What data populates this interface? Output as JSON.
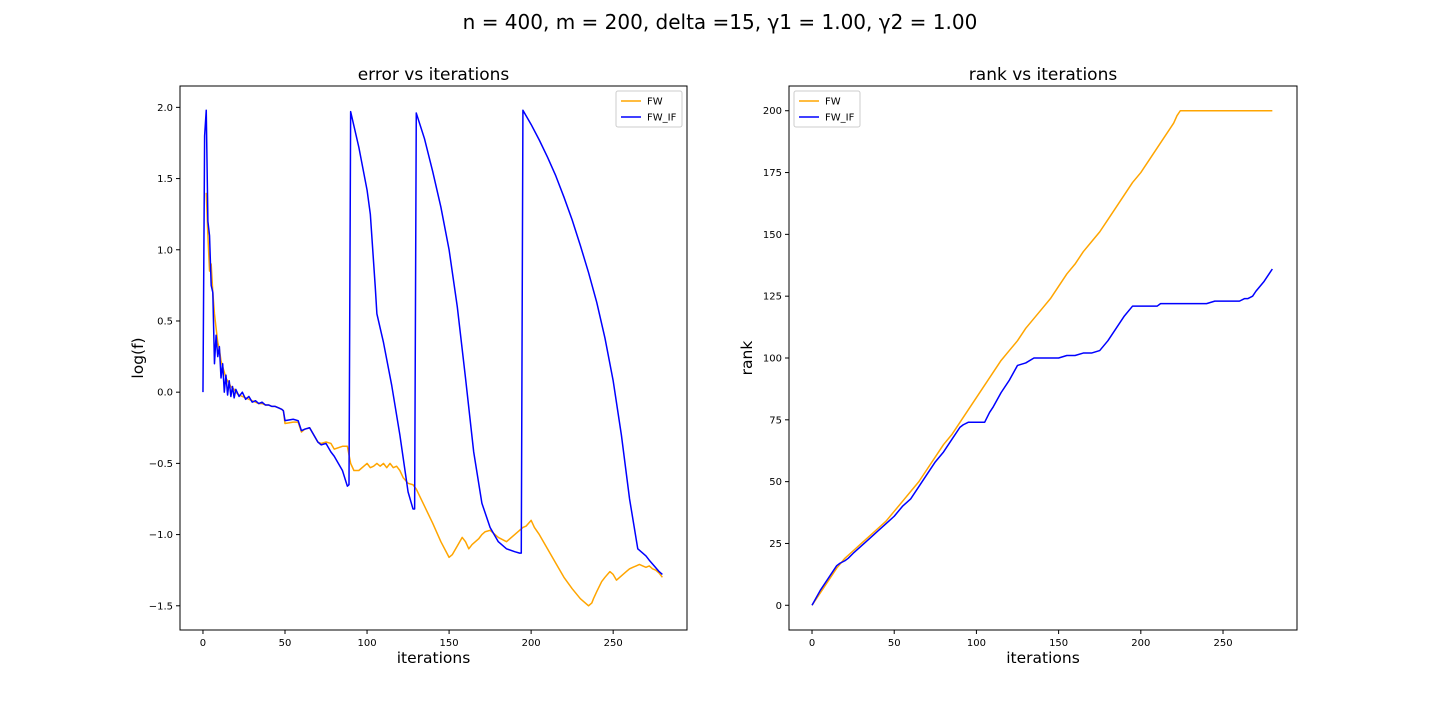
{
  "figure": {
    "suptitle": "n = 400, m = 200, delta =15, γ1 = 1.00, γ2 = 1.00"
  },
  "colors": {
    "FW": "#ffa500",
    "FW_IF": "#0000ff",
    "axes": "#000000",
    "legend_border": "#cccccc"
  },
  "chart_data": [
    {
      "type": "line",
      "title": "error vs iterations",
      "xlabel": "iterations",
      "ylabel": "log(f)",
      "xlim": [
        -14,
        295
      ],
      "ylim": [
        -1.67,
        2.15
      ],
      "xticks": [
        0,
        50,
        100,
        150,
        200,
        250
      ],
      "xtick_labels": [
        "0",
        "50",
        "100",
        "150",
        "200",
        "250"
      ],
      "yticks": [
        -1.5,
        -1.0,
        -0.5,
        0.0,
        0.5,
        1.0,
        1.5,
        2.0
      ],
      "ytick_labels": [
        "−1.5",
        "−1.0",
        "−0.5",
        "0.0",
        "0.5",
        "1.0",
        "1.5",
        "2.0"
      ],
      "grid": false,
      "legend": "top-right",
      "series": [
        {
          "name": "FW",
          "color_key": "FW",
          "x": [
            2,
            3,
            4,
            5,
            6,
            7,
            8,
            9,
            10,
            11,
            12,
            13,
            14,
            15,
            16,
            17,
            18,
            19,
            20,
            22,
            24,
            26,
            28,
            30,
            32,
            34,
            36,
            38,
            40,
            42,
            44,
            46,
            48,
            49,
            50,
            55,
            58,
            60,
            62,
            65,
            70,
            72,
            75,
            78,
            80,
            85,
            88,
            90,
            92,
            95,
            100,
            102,
            104,
            106,
            108,
            110,
            112,
            114,
            116,
            118,
            120,
            122,
            125,
            128,
            130,
            135,
            140,
            145,
            150,
            152,
            155,
            158,
            160,
            162,
            164,
            166,
            168,
            170,
            172,
            175,
            178,
            180,
            185,
            190,
            195,
            197,
            200,
            202,
            205,
            210,
            215,
            220,
            225,
            230,
            235,
            237,
            238,
            240,
            243,
            245,
            248,
            250,
            252,
            254,
            256,
            258,
            260,
            262,
            264,
            266,
            268,
            270,
            272,
            274,
            276,
            278,
            280
          ],
          "y": [
            1.4,
            1.1,
            0.85,
            0.9,
            0.7,
            0.55,
            0.45,
            0.35,
            0.3,
            0.22,
            0.18,
            0.14,
            0.1,
            0.08,
            0.06,
            0.04,
            0.03,
            0.02,
            0.0,
            -0.02,
            -0.03,
            -0.04,
            -0.05,
            -0.06,
            -0.07,
            -0.08,
            -0.08,
            -0.09,
            -0.09,
            -0.1,
            -0.1,
            -0.11,
            -0.12,
            -0.13,
            -0.22,
            -0.21,
            -0.21,
            -0.28,
            -0.26,
            -0.25,
            -0.35,
            -0.36,
            -0.35,
            -0.36,
            -0.4,
            -0.38,
            -0.38,
            -0.5,
            -0.55,
            -0.55,
            -0.5,
            -0.53,
            -0.52,
            -0.5,
            -0.52,
            -0.5,
            -0.53,
            -0.5,
            -0.53,
            -0.52,
            -0.55,
            -0.6,
            -0.64,
            -0.65,
            -0.68,
            -0.8,
            -0.92,
            -1.05,
            -1.16,
            -1.14,
            -1.08,
            -1.02,
            -1.05,
            -1.1,
            -1.07,
            -1.05,
            -1.03,
            -1.0,
            -0.98,
            -0.97,
            -1.0,
            -1.02,
            -1.05,
            -1.0,
            -0.95,
            -0.94,
            -0.9,
            -0.95,
            -1.0,
            -1.1,
            -1.2,
            -1.3,
            -1.38,
            -1.45,
            -1.5,
            -1.48,
            -1.45,
            -1.4,
            -1.33,
            -1.3,
            -1.26,
            -1.28,
            -1.32,
            -1.3,
            -1.28,
            -1.26,
            -1.24,
            -1.23,
            -1.22,
            -1.21,
            -1.22,
            -1.23,
            -1.22,
            -1.24,
            -1.25,
            -1.27,
            -1.3
          ]
        },
        {
          "name": "FW_IF",
          "color_key": "FW_IF",
          "x": [
            0,
            1,
            2,
            3,
            4,
            5,
            6,
            7,
            8,
            9,
            10,
            11,
            12,
            13,
            14,
            15,
            16,
            17,
            18,
            19,
            20,
            22,
            24,
            26,
            28,
            30,
            32,
            34,
            36,
            38,
            40,
            42,
            44,
            46,
            48,
            49,
            50,
            55,
            58,
            60,
            62,
            65,
            70,
            72,
            75,
            78,
            80,
            85,
            88,
            89,
            90,
            95,
            100,
            102,
            105,
            106,
            110,
            115,
            120,
            125,
            128,
            129,
            130,
            135,
            140,
            145,
            150,
            155,
            160,
            165,
            170,
            175,
            180,
            185,
            190,
            193,
            194,
            195,
            200,
            205,
            210,
            215,
            220,
            225,
            230,
            235,
            240,
            245,
            250,
            255,
            260,
            265,
            270,
            272,
            275,
            278,
            280
          ],
          "y": [
            0.0,
            1.8,
            1.98,
            1.2,
            1.1,
            0.75,
            0.7,
            0.2,
            0.4,
            0.25,
            0.32,
            0.1,
            0.2,
            0.0,
            0.12,
            -0.02,
            0.08,
            -0.03,
            0.04,
            -0.04,
            0.02,
            -0.03,
            0.0,
            -0.05,
            -0.03,
            -0.07,
            -0.06,
            -0.08,
            -0.07,
            -0.09,
            -0.09,
            -0.1,
            -0.1,
            -0.11,
            -0.12,
            -0.13,
            -0.2,
            -0.19,
            -0.2,
            -0.27,
            -0.26,
            -0.25,
            -0.35,
            -0.37,
            -0.36,
            -0.42,
            -0.45,
            -0.55,
            -0.66,
            -0.65,
            1.97,
            1.72,
            1.42,
            1.25,
            0.74,
            0.55,
            0.35,
            0.05,
            -0.3,
            -0.7,
            -0.82,
            -0.82,
            1.96,
            1.78,
            1.55,
            1.3,
            1.0,
            0.6,
            0.1,
            -0.42,
            -0.78,
            -0.95,
            -1.05,
            -1.1,
            -1.12,
            -1.13,
            -1.13,
            1.98,
            1.88,
            1.77,
            1.65,
            1.52,
            1.37,
            1.21,
            1.03,
            0.84,
            0.63,
            0.38,
            0.08,
            -0.3,
            -0.75,
            -1.1,
            -1.15,
            -1.18,
            -1.22,
            -1.26,
            -1.28
          ]
        }
      ]
    },
    {
      "type": "line",
      "title": "rank vs iterations",
      "xlabel": "iterations",
      "ylabel": "rank",
      "xlim": [
        -14,
        295
      ],
      "ylim": [
        -10,
        210
      ],
      "xticks": [
        0,
        50,
        100,
        150,
        200,
        250
      ],
      "xtick_labels": [
        "0",
        "50",
        "100",
        "150",
        "200",
        "250"
      ],
      "yticks": [
        0,
        25,
        50,
        75,
        100,
        125,
        150,
        175,
        200
      ],
      "ytick_labels": [
        "0",
        "25",
        "50",
        "75",
        "100",
        "125",
        "150",
        "175",
        "200"
      ],
      "grid": false,
      "legend": "top-left",
      "series": [
        {
          "name": "FW",
          "color_key": "FW",
          "x": [
            0,
            5,
            10,
            15,
            20,
            25,
            30,
            35,
            40,
            45,
            50,
            55,
            60,
            65,
            70,
            75,
            80,
            85,
            90,
            95,
            100,
            105,
            110,
            115,
            120,
            125,
            130,
            135,
            140,
            145,
            150,
            155,
            160,
            165,
            170,
            175,
            180,
            185,
            190,
            195,
            200,
            205,
            210,
            215,
            220,
            222,
            224,
            225,
            230,
            240,
            250,
            260,
            270,
            280
          ],
          "y": [
            0,
            5,
            10,
            15,
            19,
            22,
            25,
            28,
            31,
            34,
            38,
            42,
            46,
            50,
            55,
            60,
            65,
            69,
            74,
            79,
            84,
            89,
            94,
            99,
            103,
            107,
            112,
            116,
            120,
            124,
            129,
            134,
            138,
            143,
            147,
            151,
            156,
            161,
            166,
            171,
            175,
            180,
            185,
            190,
            195,
            198,
            200,
            200,
            200,
            200,
            200,
            200,
            200,
            200
          ]
        },
        {
          "name": "FW_IF",
          "color_key": "FW_IF",
          "x": [
            0,
            5,
            10,
            15,
            17,
            20,
            22,
            25,
            30,
            35,
            40,
            45,
            50,
            55,
            60,
            65,
            70,
            75,
            80,
            85,
            90,
            92,
            95,
            100,
            105,
            108,
            110,
            115,
            120,
            125,
            130,
            135,
            140,
            145,
            150,
            155,
            160,
            165,
            170,
            175,
            180,
            185,
            190,
            195,
            200,
            205,
            210,
            212,
            215,
            220,
            230,
            240,
            245,
            250,
            255,
            260,
            263,
            265,
            268,
            270,
            275,
            280
          ],
          "y": [
            0,
            6,
            11,
            16,
            17,
            18,
            19,
            21,
            24,
            27,
            30,
            33,
            36,
            40,
            43,
            48,
            53,
            58,
            62,
            67,
            72,
            73,
            74,
            74,
            74,
            78,
            80,
            86,
            91,
            97,
            98,
            100,
            100,
            100,
            100,
            101,
            101,
            102,
            102,
            103,
            107,
            112,
            117,
            121,
            121,
            121,
            121,
            122,
            122,
            122,
            122,
            122,
            123,
            123,
            123,
            123,
            124,
            124,
            125,
            127,
            131,
            136
          ]
        }
      ]
    }
  ]
}
